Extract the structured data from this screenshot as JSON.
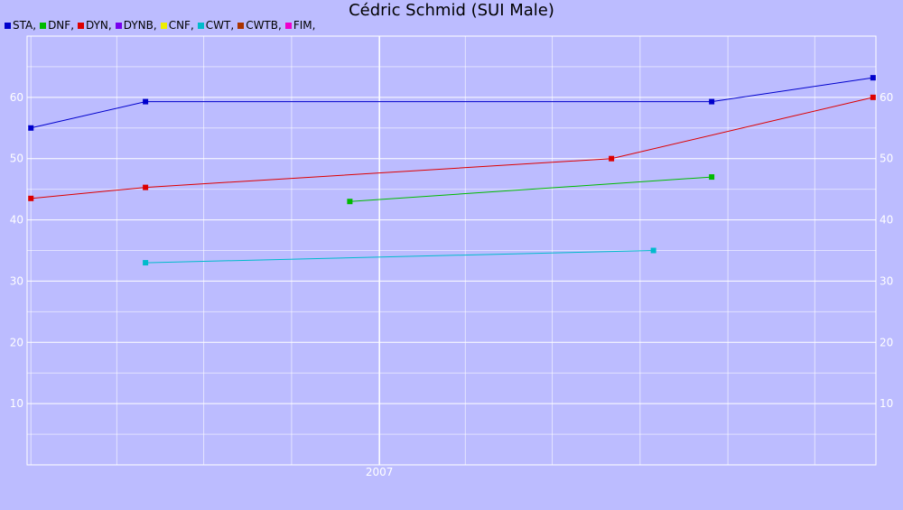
{
  "chart_data": {
    "type": "line",
    "title": "Cédric Schmid (SUI Male)",
    "xlabel": "",
    "ylabel": "",
    "ylim": [
      0,
      70
    ],
    "yticks": [
      10,
      20,
      30,
      40,
      50,
      60
    ],
    "xlim": [
      "2005-12-28",
      "2008-06-04"
    ],
    "xticks": [
      {
        "date": "2007-01-01",
        "label": "2007"
      }
    ],
    "grid": true,
    "legend_position": "top-left",
    "series": [
      {
        "name": "STA",
        "color": "#0000cc",
        "points": [
          [
            "2006-01-01",
            55
          ],
          [
            "2006-05-01",
            59.3
          ],
          [
            "2007-12-15",
            59.3
          ],
          [
            "2008-06-01",
            63.2
          ]
        ]
      },
      {
        "name": "DNF",
        "color": "#00bb00",
        "points": [
          [
            "2006-12-01",
            43
          ],
          [
            "2007-12-15",
            47
          ]
        ]
      },
      {
        "name": "DYN",
        "color": "#dd0000",
        "points": [
          [
            "2006-01-01",
            43.5
          ],
          [
            "2006-05-01",
            45.3
          ],
          [
            "2007-09-01",
            50
          ],
          [
            "2008-06-01",
            60
          ]
        ]
      },
      {
        "name": "DYNB",
        "color": "#7700ee",
        "points": []
      },
      {
        "name": "CNF",
        "color": "#eeee00",
        "points": []
      },
      {
        "name": "CWT",
        "color": "#00bbcc",
        "points": [
          [
            "2006-05-01",
            33
          ],
          [
            "2007-10-15",
            35
          ]
        ]
      },
      {
        "name": "CWTB",
        "color": "#aa3300",
        "points": []
      },
      {
        "name": "FIM",
        "color": "#ee00cc",
        "points": []
      }
    ]
  }
}
